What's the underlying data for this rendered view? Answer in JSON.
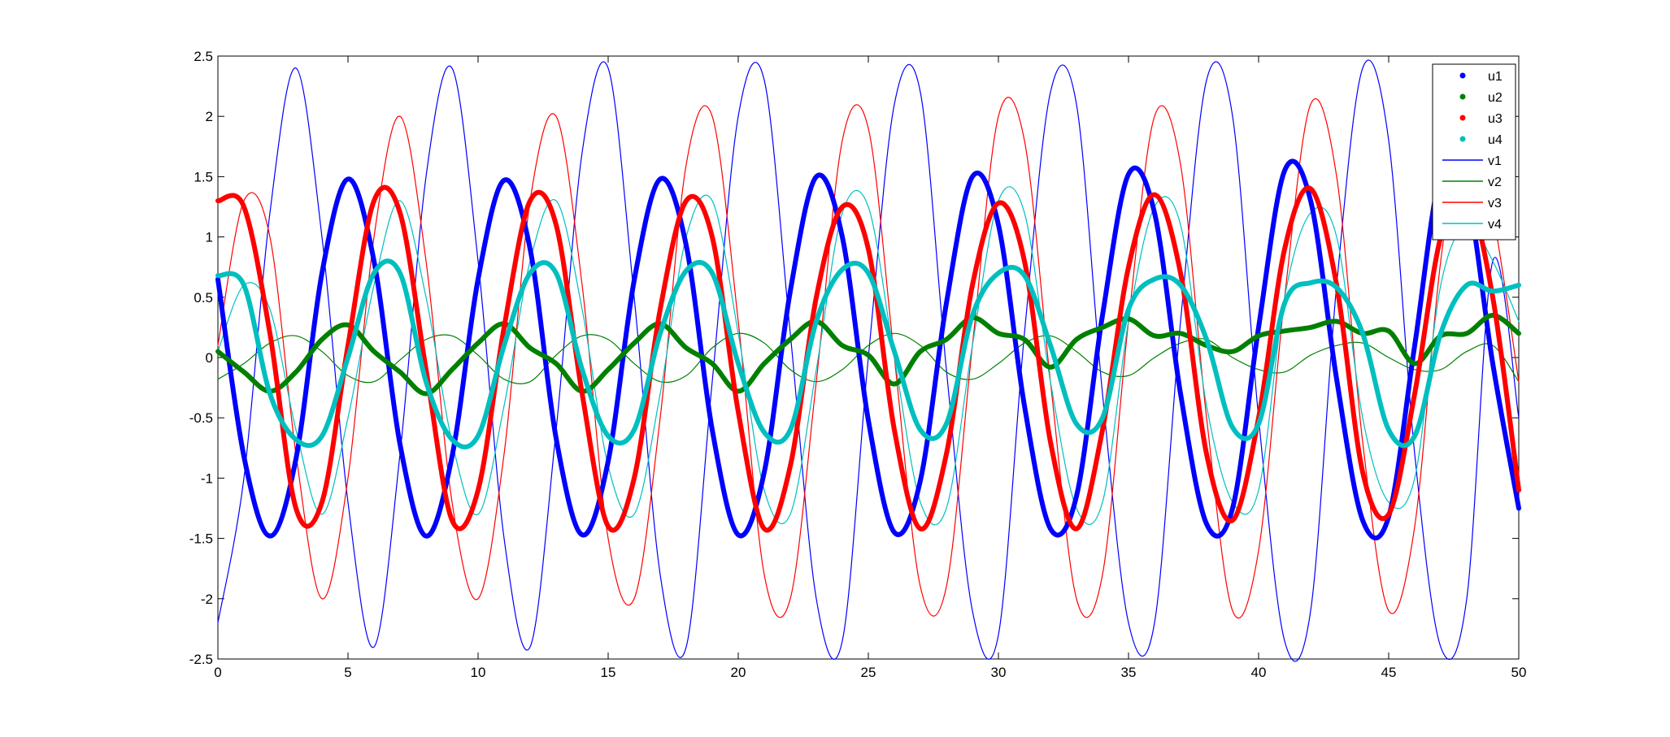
{
  "chart_data": {
    "type": "line",
    "title": "",
    "xlabel": "",
    "ylabel": "",
    "xlim": [
      0,
      50
    ],
    "ylim": [
      -2.5,
      2.5
    ],
    "grid": false,
    "legend_position": "top-right",
    "x_ticks": [
      0,
      5,
      10,
      15,
      20,
      25,
      30,
      35,
      40,
      45,
      50
    ],
    "y_ticks": [
      -2.5,
      -2,
      -1.5,
      -1,
      -0.5,
      0,
      0.5,
      1,
      1.5,
      2,
      2.5
    ],
    "x_tick_labels": [
      "0",
      "5",
      "10",
      "15",
      "20",
      "25",
      "30",
      "35",
      "40",
      "45",
      "50"
    ],
    "y_tick_labels": [
      "-2.5",
      "-2",
      "-1.5",
      "-1",
      "-0.5",
      "0",
      "0.5",
      "1",
      "1.5",
      "2",
      "2.5"
    ],
    "x": [
      0,
      1,
      2,
      3,
      4,
      5,
      6,
      7,
      8,
      9,
      10,
      11,
      12,
      13,
      14,
      15,
      16,
      17,
      18,
      19,
      20,
      21,
      22,
      23,
      24,
      25,
      26,
      27,
      28,
      29,
      30,
      31,
      32,
      33,
      34,
      35,
      36,
      37,
      38,
      39,
      40,
      41,
      42,
      43,
      44,
      45,
      46,
      47,
      48,
      49,
      50
    ],
    "series": [
      {
        "name": "u1",
        "color": "#0000ff",
        "style": "thick",
        "values": [
          0.65,
          -0.82,
          -1.48,
          -0.84,
          0.7,
          1.48,
          0.8,
          -0.72,
          -1.48,
          -0.82,
          0.65,
          1.47,
          0.9,
          -0.67,
          -1.47,
          -0.86,
          0.64,
          1.48,
          0.93,
          -0.6,
          -1.47,
          -0.95,
          0.55,
          1.5,
          1.0,
          -0.52,
          -1.45,
          -1.02,
          0.45,
          1.5,
          1.1,
          -0.4,
          -1.42,
          -1.15,
          0.35,
          1.52,
          1.2,
          -0.3,
          -1.38,
          -1.25,
          0.25,
          1.55,
          1.3,
          -0.18,
          -1.35,
          -1.32,
          0.1,
          1.52,
          1.38,
          -0.05,
          -1.25
        ]
      },
      {
        "name": "u2",
        "color": "#008000",
        "style": "thick",
        "values": [
          0.05,
          -0.12,
          -0.28,
          -0.12,
          0.15,
          0.27,
          0.05,
          -0.12,
          -0.3,
          -0.1,
          0.12,
          0.28,
          0.08,
          -0.05,
          -0.28,
          -0.1,
          0.12,
          0.28,
          0.08,
          -0.05,
          -0.28,
          -0.05,
          0.15,
          0.3,
          0.1,
          0.02,
          -0.22,
          0.05,
          0.15,
          0.33,
          0.2,
          0.15,
          -0.08,
          0.15,
          0.25,
          0.32,
          0.18,
          0.2,
          0.1,
          0.05,
          0.18,
          0.22,
          0.25,
          0.3,
          0.2,
          0.22,
          -0.05,
          0.18,
          0.2,
          0.35,
          0.2
        ]
      },
      {
        "name": "u3",
        "color": "#ff0000",
        "style": "thick",
        "values": [
          1.3,
          1.25,
          0.2,
          -1.25,
          -1.2,
          0.1,
          1.3,
          1.2,
          -0.1,
          -1.35,
          -1.1,
          0.25,
          1.3,
          1.1,
          -0.3,
          -1.4,
          -1.0,
          0.4,
          1.3,
          1.0,
          -0.45,
          -1.42,
          -0.9,
          0.5,
          1.25,
          0.9,
          -0.6,
          -1.42,
          -0.8,
          0.6,
          1.28,
          0.8,
          -0.7,
          -1.42,
          -0.6,
          0.75,
          1.35,
          0.7,
          -0.8,
          -1.35,
          -0.5,
          0.9,
          1.4,
          0.6,
          -0.95,
          -1.3,
          -0.3,
          1.0,
          1.35,
          0.5,
          -1.1
        ]
      },
      {
        "name": "u4",
        "color": "#00bfbf",
        "style": "thick",
        "values": [
          0.68,
          0.6,
          -0.3,
          -0.68,
          -0.65,
          0.0,
          0.7,
          0.7,
          -0.2,
          -0.68,
          -0.65,
          0.1,
          0.7,
          0.7,
          -0.1,
          -0.65,
          -0.6,
          0.2,
          0.72,
          0.7,
          -0.05,
          -0.62,
          -0.6,
          0.3,
          0.73,
          0.7,
          0.05,
          -0.6,
          -0.55,
          0.35,
          0.7,
          0.68,
          0.1,
          -0.55,
          -0.5,
          0.4,
          0.65,
          0.6,
          0.15,
          -0.58,
          -0.55,
          0.45,
          0.62,
          0.58,
          0.2,
          -0.6,
          -0.65,
          0.2,
          0.6,
          0.55,
          0.6
        ]
      },
      {
        "name": "v1",
        "color": "#0000ff",
        "style": "thin",
        "values": [
          -2.2,
          -1.0,
          1.2,
          2.4,
          1.0,
          -1.2,
          -2.4,
          -0.8,
          1.5,
          2.4,
          0.8,
          -1.5,
          -2.4,
          -0.6,
          1.7,
          2.4,
          0.5,
          -1.8,
          -2.4,
          -0.2,
          2.0,
          2.3,
          0.2,
          -2.0,
          -2.35,
          0.0,
          2.1,
          2.2,
          -0.1,
          -2.1,
          -2.3,
          0.2,
          2.2,
          2.1,
          -0.3,
          -2.2,
          -2.2,
          0.3,
          2.3,
          2.0,
          -0.5,
          -2.35,
          -2.1,
          0.6,
          2.4,
          1.8,
          -0.8,
          -2.4,
          -2.0,
          0.8,
          -0.5
        ]
      },
      {
        "name": "v2",
        "color": "#008000",
        "style": "thin",
        "values": [
          -0.18,
          -0.05,
          0.12,
          0.18,
          0.05,
          -0.15,
          -0.2,
          -0.02,
          0.15,
          0.18,
          0.02,
          -0.18,
          -0.2,
          0.02,
          0.18,
          0.15,
          -0.05,
          -0.2,
          -0.15,
          0.08,
          0.2,
          0.12,
          -0.1,
          -0.2,
          -0.1,
          0.1,
          0.2,
          0.1,
          -0.12,
          -0.18,
          -0.05,
          0.12,
          0.18,
          0.05,
          -0.12,
          -0.15,
          0.0,
          0.12,
          0.15,
          0.0,
          -0.1,
          -0.12,
          0.02,
          0.1,
          0.12,
          0.0,
          -0.1,
          -0.1,
          0.05,
          0.1,
          -0.2
        ]
      },
      {
        "name": "v3",
        "color": "#ff0000",
        "style": "thin",
        "values": [
          0.1,
          1.3,
          1.0,
          -0.8,
          -2.0,
          -1.0,
          1.0,
          2.0,
          0.8,
          -1.2,
          -2.0,
          -0.8,
          1.3,
          2.0,
          0.6,
          -1.5,
          -2.0,
          -0.5,
          1.6,
          2.0,
          0.3,
          -1.8,
          -2.0,
          -0.2,
          1.8,
          1.9,
          0.0,
          -1.9,
          -1.9,
          0.1,
          2.0,
          1.8,
          -0.2,
          -2.0,
          -1.8,
          0.3,
          2.0,
          1.6,
          -0.5,
          -2.1,
          -1.6,
          0.5,
          2.1,
          1.5,
          -0.7,
          -2.1,
          -1.4,
          0.8,
          2.0,
          1.2,
          -0.2
        ]
      },
      {
        "name": "v4",
        "color": "#00bfbf",
        "style": "thin",
        "values": [
          0.05,
          0.6,
          0.4,
          -0.6,
          -1.3,
          -0.5,
          0.6,
          1.3,
          0.5,
          -0.7,
          -1.3,
          -0.4,
          0.8,
          1.3,
          0.4,
          -0.9,
          -1.3,
          -0.3,
          1.0,
          1.3,
          0.2,
          -1.1,
          -1.3,
          -0.1,
          1.2,
          1.25,
          0.0,
          -1.2,
          -1.25,
          0.1,
          1.3,
          1.2,
          -0.2,
          -1.25,
          -1.2,
          0.3,
          1.25,
          1.1,
          -0.4,
          -1.2,
          -1.1,
          0.5,
          1.2,
          1.0,
          -0.5,
          -1.2,
          -1.0,
          0.6,
          1.1,
          0.8,
          0.3
        ]
      }
    ]
  }
}
